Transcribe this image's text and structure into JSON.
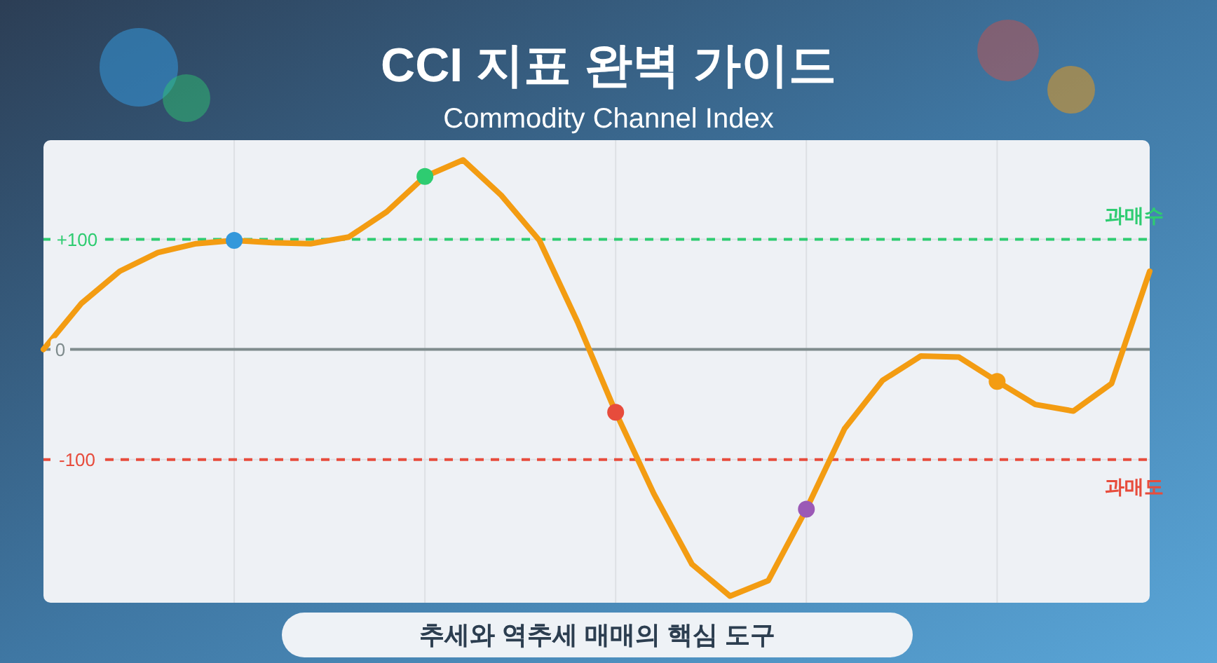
{
  "chart_data": {
    "type": "line",
    "title": "CCI 지표 완벽 가이드",
    "subtitle": "Commodity Channel Index",
    "categories": [
      null,
      null,
      null,
      null,
      null,
      null,
      null,
      null,
      null,
      null,
      null,
      null,
      null,
      null,
      null,
      null,
      null,
      null,
      null,
      null,
      null,
      null,
      null,
      null,
      null,
      null,
      null,
      null,
      null,
      null
    ],
    "ylim": [
      -230,
      190
    ],
    "yticks": [
      {
        "value": 100,
        "label": "+100"
      },
      0,
      -100
    ],
    "tick_labels": "y",
    "grid": true,
    "series": [
      {
        "color": "#f39c12",
        "values": [
          0,
          42,
          71,
          88,
          96,
          99,
          97,
          96,
          102,
          125,
          157,
          172,
          140,
          99,
          25,
          -57,
          -131,
          -195,
          -224,
          -210,
          -145,
          -72,
          -28,
          -6,
          -7,
          -29,
          -50,
          -56,
          -31,
          71
        ]
      },
      {
        "type": "scatter",
        "marker": "circle",
        "colors": [
          null,
          null,
          null,
          null,
          null,
          "#3498db",
          null,
          null,
          null,
          null,
          "#2ecc71",
          null,
          null,
          null,
          null,
          "#e74c3c",
          null,
          null,
          null,
          null,
          "#9b59b6",
          null,
          null,
          null,
          null,
          "#f39c12",
          null,
          null,
          null,
          null
        ],
        "values": [
          null,
          null,
          null,
          null,
          null,
          99,
          null,
          null,
          null,
          null,
          157,
          null,
          null,
          null,
          null,
          -57,
          null,
          null,
          null,
          null,
          -145,
          null,
          null,
          null,
          null,
          -29,
          null,
          null,
          null,
          null
        ]
      }
    ],
    "ref_lines": [
      {
        "axis": "y",
        "value": 100,
        "label": "과매수",
        "color": "#2ecc71",
        "line_style": "dashed"
      },
      {
        "axis": "y",
        "value": -100,
        "label": "과매도",
        "color": "#e74c3c",
        "line_style": "dashed"
      },
      {
        "axis": "y",
        "value": 0,
        "color": "#7f8c8d",
        "line_style": "solid"
      }
    ],
    "annotations": [
      "추세와 역추세 매매의 핵심 도구"
    ]
  }
}
